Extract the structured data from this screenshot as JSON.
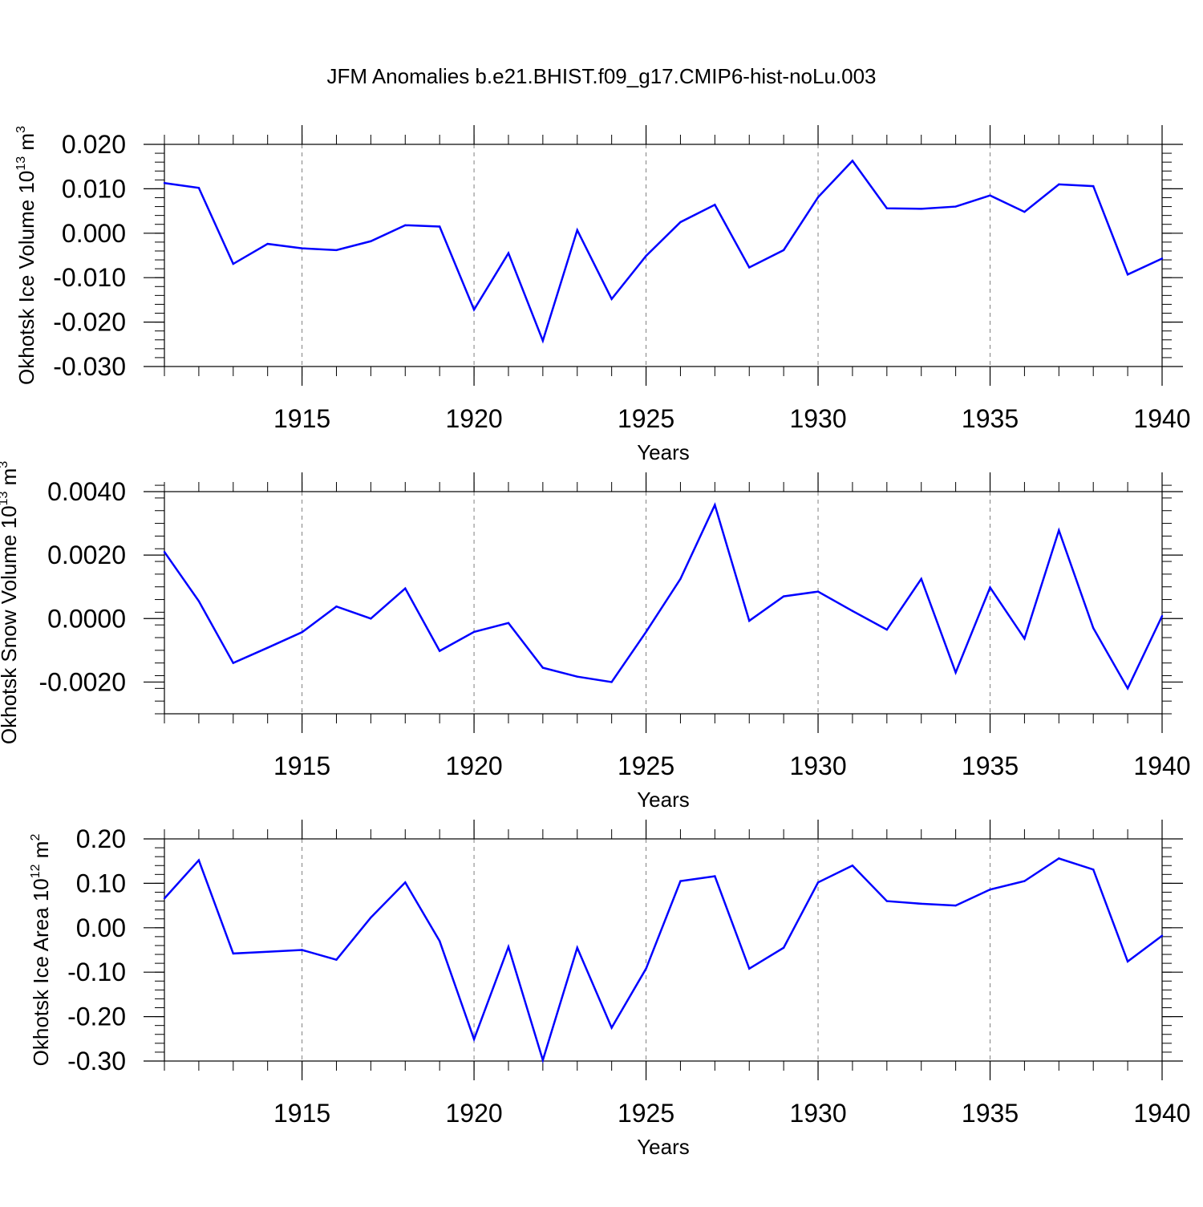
{
  "title": "JFM Anomalies b.e21.BHIST.f09_g17.CMIP6-hist-noLu.003",
  "colors": {
    "line": "#0000ff",
    "axis": "#000000",
    "grid": "#808080"
  },
  "chart_data": [
    {
      "type": "line",
      "ylabel_main": "Okhotsk Ice Volume 10",
      "ylabel_sup": "13",
      "ylabel_unit": " m",
      "ylabel_unit_sup": "3",
      "xlabel": "Years",
      "xlim": [
        1911,
        1940
      ],
      "ylim": [
        -0.03,
        0.02
      ],
      "yticks": [
        -0.03,
        -0.02,
        -0.01,
        0.0,
        0.01,
        0.02
      ],
      "ytick_labels": [
        "-0.030",
        "-0.020",
        "-0.010",
        "0.000",
        "0.010",
        "0.020"
      ],
      "xticks": [
        1915,
        1920,
        1925,
        1930,
        1935,
        1940
      ],
      "xtick_labels": [
        "1915",
        "1920",
        "1925",
        "1930",
        "1935",
        "1940"
      ],
      "x": [
        1911,
        1912,
        1913,
        1914,
        1915,
        1916,
        1917,
        1918,
        1919,
        1920,
        1921,
        1922,
        1923,
        1924,
        1925,
        1926,
        1927,
        1928,
        1929,
        1930,
        1931,
        1932,
        1933,
        1934,
        1935,
        1936,
        1937,
        1938,
        1939,
        1940
      ],
      "y": [
        0.0113,
        0.0102,
        -0.0069,
        -0.0024,
        -0.0034,
        -0.0038,
        -0.0018,
        0.0018,
        0.0015,
        -0.0172,
        -0.0045,
        -0.0242,
        0.0007,
        -0.0148,
        -0.0051,
        0.0025,
        0.0064,
        -0.0077,
        -0.0038,
        0.0081,
        0.0163,
        0.0056,
        0.0055,
        0.006,
        0.0085,
        0.0048,
        0.011,
        0.0106,
        -0.0093,
        -0.0057
      ]
    },
    {
      "type": "line",
      "ylabel_main": "Okhotsk Snow Volume 10",
      "ylabel_sup": "13",
      "ylabel_unit": " m",
      "ylabel_unit_sup": "3",
      "xlabel": "Years",
      "xlim": [
        1911,
        1940
      ],
      "ylim": [
        -0.003,
        0.004
      ],
      "yticks": [
        -0.002,
        0.0,
        0.002,
        0.004
      ],
      "ytick_labels": [
        "-0.0020",
        "0.0000",
        "0.0020",
        "0.0040"
      ],
      "xticks": [
        1915,
        1920,
        1925,
        1930,
        1935,
        1940
      ],
      "xtick_labels": [
        "1915",
        "1920",
        "1925",
        "1930",
        "1935",
        "1940"
      ],
      "x": [
        1911,
        1912,
        1913,
        1914,
        1915,
        1916,
        1917,
        1918,
        1919,
        1920,
        1921,
        1922,
        1923,
        1924,
        1925,
        1926,
        1927,
        1928,
        1929,
        1930,
        1931,
        1932,
        1933,
        1934,
        1935,
        1936,
        1937,
        1938,
        1939,
        1940
      ],
      "y": [
        0.0021,
        0.00055,
        -0.0014,
        -0.00092,
        -0.00043,
        0.00038,
        0.0,
        0.00095,
        -0.00102,
        -0.00042,
        -0.00014,
        -0.00155,
        -0.00183,
        -0.002,
        -0.00042,
        0.00125,
        0.00358,
        -7e-05,
        0.0007,
        0.00085,
        0.00024,
        -0.00035,
        0.00125,
        -0.0017,
        0.00098,
        -0.00063,
        0.00278,
        -0.0003,
        -0.0022,
        8e-05
      ]
    },
    {
      "type": "line",
      "ylabel_main": "Okhotsk Ice Area 10",
      "ylabel_sup": "12",
      "ylabel_unit": " m",
      "ylabel_unit_sup": "2",
      "xlabel": "Years",
      "xlim": [
        1911,
        1940
      ],
      "ylim": [
        -0.3,
        0.2
      ],
      "yticks": [
        -0.3,
        -0.2,
        -0.1,
        0.0,
        0.1,
        0.2
      ],
      "ytick_labels": [
        "-0.30",
        "-0.20",
        "-0.10",
        "0.00",
        "0.10",
        "0.20"
      ],
      "xticks": [
        1915,
        1920,
        1925,
        1930,
        1935,
        1940
      ],
      "xtick_labels": [
        "1915",
        "1920",
        "1925",
        "1930",
        "1935",
        "1940"
      ],
      "x": [
        1911,
        1912,
        1913,
        1914,
        1915,
        1916,
        1917,
        1918,
        1919,
        1920,
        1921,
        1922,
        1923,
        1924,
        1925,
        1926,
        1927,
        1928,
        1929,
        1930,
        1931,
        1932,
        1933,
        1934,
        1935,
        1936,
        1937,
        1938,
        1939,
        1940
      ],
      "y": [
        0.066,
        0.152,
        -0.058,
        -0.054,
        -0.05,
        -0.072,
        0.023,
        0.102,
        -0.03,
        -0.251,
        -0.043,
        -0.298,
        -0.045,
        -0.225,
        -0.092,
        0.105,
        0.116,
        -0.092,
        -0.045,
        0.102,
        0.14,
        0.06,
        0.054,
        0.05,
        0.086,
        0.105,
        0.156,
        0.131,
        -0.076,
        -0.018
      ]
    }
  ]
}
